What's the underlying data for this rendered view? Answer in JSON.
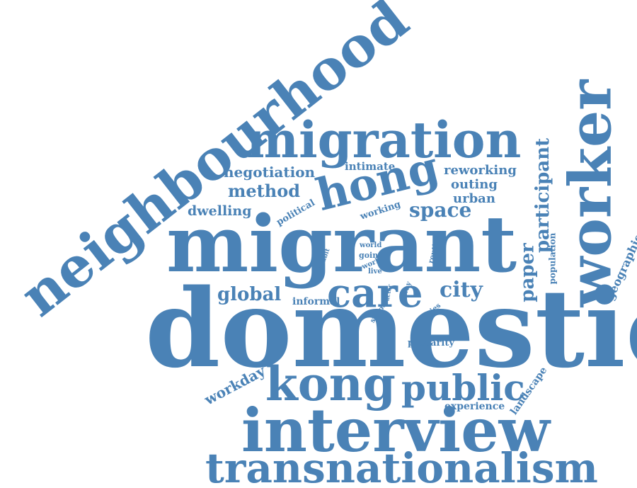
{
  "colors": {
    "word": "#4a82b6",
    "background": "#ffffff"
  },
  "words": {
    "neighbourhood": "neighbourhood",
    "migration": "migration",
    "worker": "worker",
    "negotiation": "negotiation",
    "intimate": "intimate",
    "hong": "hong",
    "reworking": "reworking",
    "outing": "outing",
    "urban": "urban",
    "method": "method",
    "paper": "paper",
    "participant": "participant",
    "dwelling": "dwelling",
    "political": "political",
    "working_top": "working",
    "space": "space",
    "migrant": "migrant",
    "inhabit": "inhabit",
    "world": "world",
    "going": "going",
    "work": "work",
    "live": "live",
    "routine": "routine",
    "population": "population",
    "geographies": "geographies",
    "global": "global",
    "care": "care",
    "city": "city",
    "actor": "actor",
    "way": "way",
    "informal": "informal",
    "shape": "shape",
    "diaries": "diaries",
    "domestic": "domestic",
    "precarity": "precarity",
    "workday": "workday",
    "kong": "kong",
    "public": "public",
    "landscape": "landscape",
    "experience": "experience",
    "interview": "interview",
    "transnationalism": "transnationalism"
  }
}
